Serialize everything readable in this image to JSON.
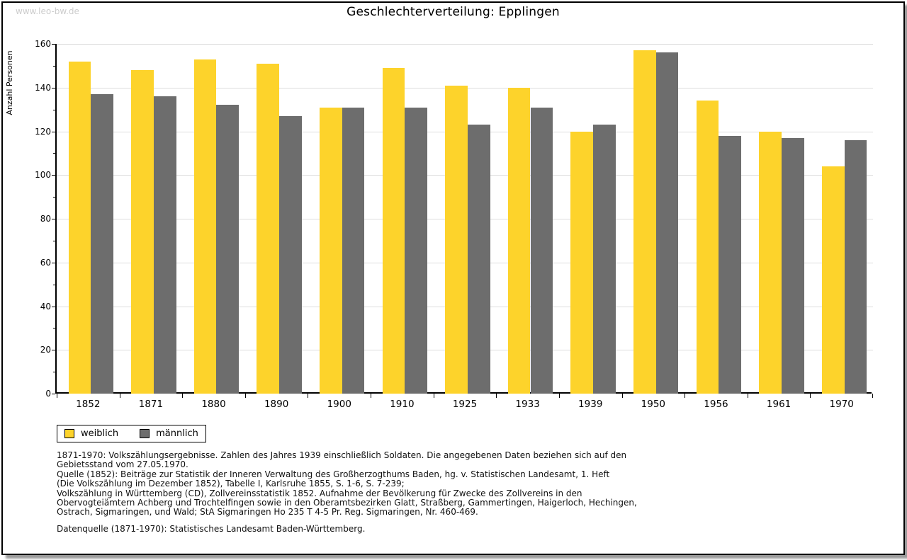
{
  "watermark": "www.leo-bw.de",
  "title": "Geschlechterverteilung: Epplingen",
  "chart_data": {
    "type": "bar",
    "title": "Geschlechterverteilung: Epplingen",
    "xlabel": "",
    "ylabel": "Anzahl Personen",
    "categories": [
      "1852",
      "1871",
      "1880",
      "1890",
      "1900",
      "1910",
      "1925",
      "1933",
      "1939",
      "1950",
      "1956",
      "1961",
      "1970"
    ],
    "series": [
      {
        "name": "weiblich",
        "color": "#FDD32B",
        "values": [
          152,
          148,
          153,
          151,
          131,
          149,
          141,
          140,
          120,
          157,
          134,
          120,
          104
        ]
      },
      {
        "name": "männlich",
        "color": "#6D6D6D",
        "values": [
          137,
          136,
          132,
          127,
          131,
          131,
          123,
          131,
          123,
          156,
          118,
          117,
          116
        ]
      }
    ],
    "ylim": [
      0,
      160
    ],
    "ytick_step": 20,
    "yminor_step": 10,
    "grid": true,
    "gridline_color": "#dddddd",
    "legend_position": "bottom-left"
  },
  "legend": {
    "items": [
      {
        "label": "weiblich",
        "color": "#FDD32B"
      },
      {
        "label": "männlich",
        "color": "#6D6D6D"
      }
    ]
  },
  "footer": {
    "lines": [
      "1871-1970: Volkszählungsergebnisse. Zahlen des Jahres 1939 einschließlich Soldaten. Die angegebenen Daten beziehen sich auf den",
      "Gebietsstand vom 27.05.1970.",
      "Quelle (1852): Beiträge zur Statistik der Inneren Verwaltung des Großherzogthums Baden, hg. v. Statistischen Landesamt, 1. Heft",
      "(Die Volkszählung im Dezember 1852), Tabelle I, Karlsruhe 1855, S. 1-6, S. 7-239;",
      "Volkszählung in Württemberg (CD), Zollvereinsstatistik 1852. Aufnahme der Bevölkerung für Zwecke des Zollvereins in den",
      "Obervogteiämtern Achberg und Trochtelfingen sowie in den Oberamtsbezirken Glatt, Straßberg, Gammertingen, Haigerloch, Hechingen,",
      "Ostrach, Sigmaringen, und Wald; StA Sigmaringen Ho 235 T 4-5 Pr. Reg. Sigmaringen, Nr. 460-469."
    ],
    "datasource": "Datenquelle (1871-1970): Statistisches Landesamt Baden-Württemberg."
  }
}
